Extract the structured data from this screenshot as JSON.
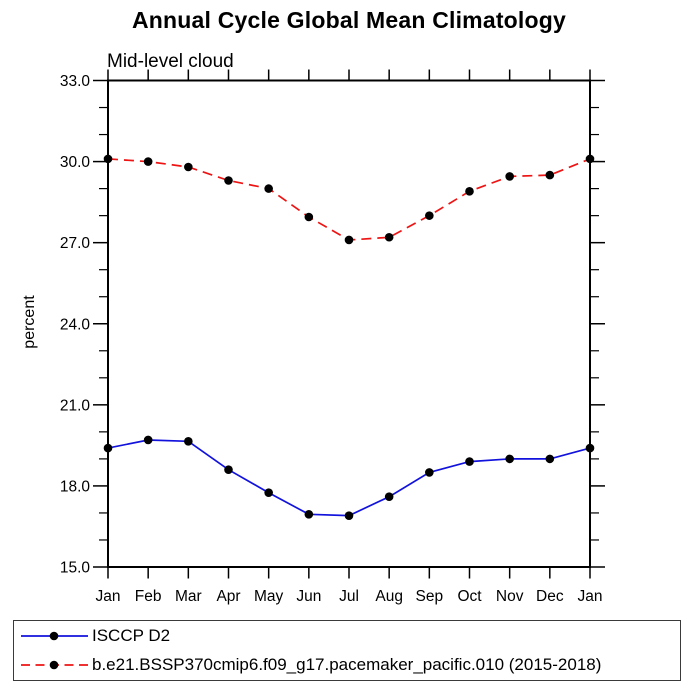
{
  "chart_data": {
    "type": "line",
    "title": "Annual Cycle Global Mean Climatology",
    "subtitle": "Mid-level cloud",
    "ylabel": "percent",
    "categories": [
      "Jan",
      "Feb",
      "Mar",
      "Apr",
      "May",
      "Jun",
      "Jul",
      "Aug",
      "Sep",
      "Oct",
      "Nov",
      "Dec",
      "Jan"
    ],
    "ylim": [
      15.0,
      33.0
    ],
    "y_major_ticks": [
      15.0,
      18.0,
      21.0,
      24.0,
      27.0,
      30.0,
      33.0
    ],
    "y_tick_labels": [
      "15.0",
      "18.0",
      "21.0",
      "24.0",
      "27.0",
      "30.0",
      "33.0"
    ],
    "y_minor_interval": 1.0,
    "grid": false,
    "legend_position": "bottom-left-box",
    "axis_color": "#000000",
    "series": [
      {
        "name": "ISCCP D2",
        "line_style": "solid",
        "line_color": "#1212dd",
        "marker": "filled-circle",
        "marker_color": "#000000",
        "values": [
          19.4,
          19.7,
          19.65,
          18.6,
          17.75,
          16.95,
          16.9,
          17.6,
          18.5,
          18.9,
          19.0,
          19.0,
          19.4
        ]
      },
      {
        "name": "b.e21.BSSP370cmip6.f09_g17.pacemaker_pacific.010 (2015-2018)",
        "line_style": "dashed",
        "line_color": "#ee1414",
        "marker": "filled-circle",
        "marker_color": "#000000",
        "values": [
          30.1,
          30.0,
          29.8,
          29.3,
          29.0,
          27.95,
          27.1,
          27.2,
          28.0,
          28.9,
          29.45,
          29.5,
          30.1
        ]
      }
    ]
  }
}
